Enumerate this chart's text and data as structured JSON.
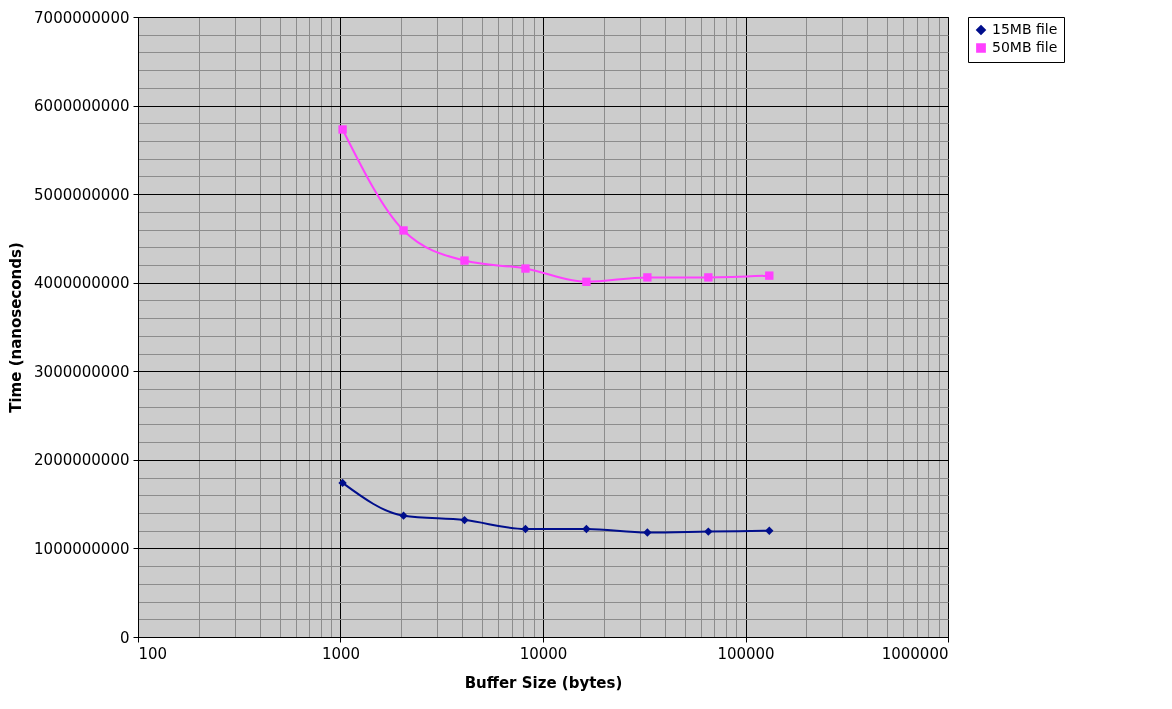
{
  "chart_data": {
    "type": "line",
    "xlabel": "Buffer Size (bytes)",
    "ylabel": "Time (nanoseconds)",
    "x": [
      1024,
      2048,
      4096,
      8192,
      16384,
      32768,
      65536,
      131072
    ],
    "series": [
      {
        "name": "15MB file",
        "color": "#000e8c",
        "marker": "diamond",
        "values": [
          1740000000,
          1370000000,
          1320000000,
          1220000000,
          1220000000,
          1180000000,
          1190000000,
          1200000000
        ]
      },
      {
        "name": "50MB file",
        "color": "#ff40ff",
        "marker": "square",
        "values": [
          5730000000,
          4590000000,
          4250000000,
          4160000000,
          4010000000,
          4060000000,
          4060000000,
          4080000000
        ]
      }
    ],
    "log": "x",
    "xlim": [
      100,
      1000000
    ],
    "xticks": [
      100,
      {
        "value": 200,
        "label": null
      },
      {
        "value": 300,
        "label": null
      },
      {
        "value": 400,
        "label": null
      },
      {
        "value": 500,
        "label": null
      },
      {
        "value": 600,
        "label": null
      },
      {
        "value": 700,
        "label": null
      },
      {
        "value": 800,
        "label": null
      },
      {
        "value": 900,
        "label": null
      },
      1000,
      {
        "value": 2000,
        "label": null
      },
      {
        "value": 3000,
        "label": null
      },
      {
        "value": 4000,
        "label": null
      },
      {
        "value": 5000,
        "label": null
      },
      {
        "value": 6000,
        "label": null
      },
      {
        "value": 7000,
        "label": null
      },
      {
        "value": 8000,
        "label": null
      },
      {
        "value": 9000,
        "label": null
      },
      10000,
      {
        "value": 20000,
        "label": null
      },
      {
        "value": 30000,
        "label": null
      },
      {
        "value": 40000,
        "label": null
      },
      {
        "value": 50000,
        "label": null
      },
      {
        "value": 60000,
        "label": null
      },
      {
        "value": 70000,
        "label": null
      },
      {
        "value": 80000,
        "label": null
      },
      {
        "value": 90000,
        "label": null
      },
      100000,
      {
        "value": 200000,
        "label": null
      },
      {
        "value": 300000,
        "label": null
      },
      {
        "value": 400000,
        "label": null
      },
      {
        "value": 500000,
        "label": null
      },
      {
        "value": 600000,
        "label": null
      },
      {
        "value": 700000,
        "label": null
      },
      {
        "value": 800000,
        "label": null
      },
      {
        "value": 900000,
        "label": null
      },
      1000000
    ],
    "ylim": [
      0,
      7000000000
    ],
    "yticks": [
      0,
      {
        "value": 200000000,
        "label": null
      },
      {
        "value": 400000000,
        "label": null
      },
      {
        "value": 600000000,
        "label": null
      },
      {
        "value": 800000000,
        "label": null
      },
      1000000000,
      {
        "value": 1200000000,
        "label": null
      },
      {
        "value": 1400000000,
        "label": null
      },
      {
        "value": 1600000000,
        "label": null
      },
      {
        "value": 1800000000,
        "label": null
      },
      2000000000,
      {
        "value": 2200000000,
        "label": null
      },
      {
        "value": 2400000000,
        "label": null
      },
      {
        "value": 2600000000,
        "label": null
      },
      {
        "value": 2800000000,
        "label": null
      },
      3000000000,
      {
        "value": 3200000000,
        "label": null
      },
      {
        "value": 3400000000,
        "label": null
      },
      {
        "value": 3600000000,
        "label": null
      },
      {
        "value": 3800000000,
        "label": null
      },
      4000000000,
      {
        "value": 4200000000,
        "label": null
      },
      {
        "value": 4400000000,
        "label": null
      },
      {
        "value": 4600000000,
        "label": null
      },
      {
        "value": 4800000000,
        "label": null
      },
      5000000000,
      {
        "value": 5200000000,
        "label": null
      },
      {
        "value": 5400000000,
        "label": null
      },
      {
        "value": 5600000000,
        "label": null
      },
      {
        "value": 5800000000,
        "label": null
      },
      6000000000,
      {
        "value": 6200000000,
        "label": null
      },
      {
        "value": 6400000000,
        "label": null
      },
      {
        "value": 6600000000,
        "label": null
      },
      {
        "value": 6800000000,
        "label": null
      },
      7000000000
    ],
    "grid": true,
    "legend": "right"
  }
}
